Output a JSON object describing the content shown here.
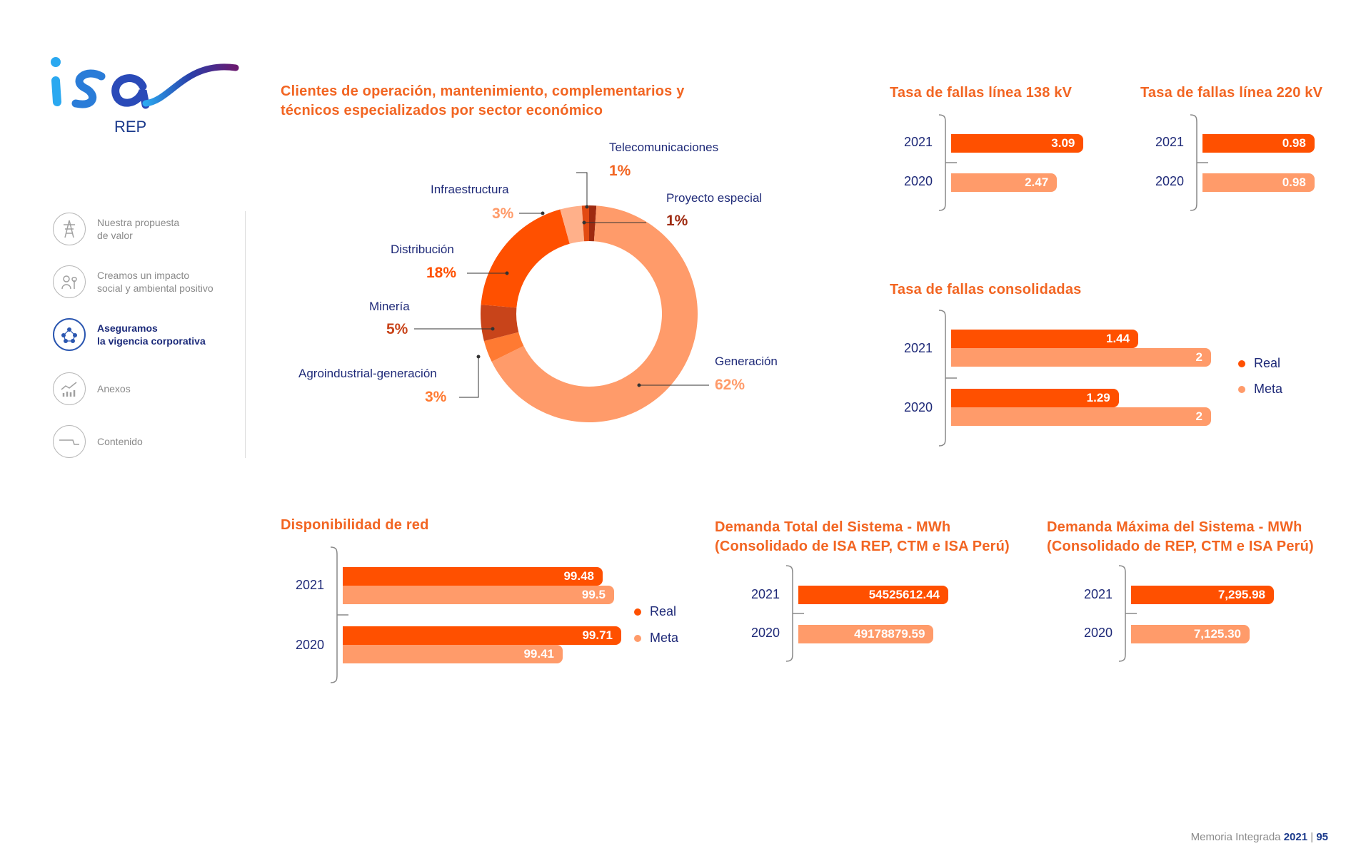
{
  "brand": {
    "logo_text": "isa",
    "sub": "REP"
  },
  "colors": {
    "real": "#ff5000",
    "meta": "#ff9b6a",
    "title": "#f26522",
    "text": "#1f2a78"
  },
  "sidebar": {
    "items": [
      {
        "label": "Nuestra propuesta\nde valor",
        "icon": "transmission-tower-icon",
        "active": false
      },
      {
        "label": "Creamos un impacto\nsocial y ambiental positivo",
        "icon": "people-plant-icon",
        "active": false
      },
      {
        "label": "Aseguramos\nla vigencia corporativa",
        "icon": "corporate-network-icon",
        "active": true
      },
      {
        "label": "Anexos",
        "icon": "chart-trend-icon",
        "active": false
      },
      {
        "label": "Contenido",
        "icon": "contents-icon",
        "active": false
      }
    ]
  },
  "legend": {
    "real": "Real",
    "meta": "Meta"
  },
  "footer": {
    "text": "Memoria Integrada",
    "year": "2021",
    "sep": "|",
    "page": "95"
  },
  "chart_data": [
    {
      "type": "pie",
      "title": "Clientes de operación, mantenimiento, complementarios y técnicos especializados por sector económico",
      "title_lines": [
        "Clientes de operación, mantenimiento, complementarios y",
        "técnicos especializados por sector económico"
      ],
      "slices": [
        {
          "label": "Proyecto especial",
          "value": 1,
          "pct": "1%",
          "color": "#9e2a10"
        },
        {
          "label": "Generación",
          "value": 62,
          "pct": "62%",
          "color": "#ff9b6a"
        },
        {
          "label": "Agroindustrial-generación",
          "value": 3,
          "pct": "3%",
          "color": "#ff7a32"
        },
        {
          "label": "Minería",
          "value": 5,
          "pct": "5%",
          "color": "#c8441a"
        },
        {
          "label": "Distribución",
          "value": 18,
          "pct": "18%",
          "color": "#ff5000"
        },
        {
          "label": "Infraestructura",
          "value": 3,
          "pct": "3%",
          "color": "#ffb08a"
        },
        {
          "label": "Telecomunicaciones",
          "value": 1,
          "pct": "1%",
          "color": "#e24a12"
        }
      ]
    },
    {
      "type": "bar",
      "title": "Tasa de fallas línea 138 kV",
      "categories": [
        "2021",
        "2020"
      ],
      "values": [
        3.09,
        2.47
      ],
      "labels": [
        "3.09",
        "2.47"
      ]
    },
    {
      "type": "bar",
      "title": "Tasa de fallas línea 220 kV",
      "categories": [
        "2021",
        "2020"
      ],
      "values": [
        0.98,
        0.98
      ],
      "labels": [
        "0.98",
        "0.98"
      ]
    },
    {
      "type": "bar",
      "title": "Tasa de fallas consolidadas",
      "categories": [
        "2021",
        "2020"
      ],
      "series": [
        {
          "name": "Real",
          "values": [
            1.44,
            1.29
          ],
          "labels": [
            "1.44",
            "1.29"
          ]
        },
        {
          "name": "Meta",
          "values": [
            2,
            2
          ],
          "labels": [
            "2",
            "2"
          ]
        }
      ]
    },
    {
      "type": "bar",
      "title": "Disponibilidad de red",
      "categories": [
        "2021",
        "2020"
      ],
      "series": [
        {
          "name": "Real",
          "values": [
            99.48,
            99.71
          ],
          "labels": [
            "99.48",
            "99.71"
          ]
        },
        {
          "name": "Meta",
          "values": [
            99.5,
            99.41
          ],
          "labels": [
            "99.5",
            "99.41"
          ]
        }
      ]
    },
    {
      "type": "bar",
      "title": "Demanda Total del Sistema - MWh (Consolidado de ISA REP, CTM e ISA Perú)",
      "title_lines": [
        "Demanda Total del Sistema - MWh",
        "(Consolidado de ISA REP, CTM e ISA Perú)"
      ],
      "categories": [
        "2021",
        "2020"
      ],
      "values": [
        54525612.44,
        49178879.59
      ],
      "labels": [
        "54525612.44",
        "49178879.59"
      ]
    },
    {
      "type": "bar",
      "title": "Demanda Máxima del Sistema - MWh (Consolidado de REP, CTM e ISA Perú)",
      "title_lines": [
        "Demanda Máxima del Sistema - MWh",
        "(Consolidado de REP, CTM e ISA Perú)"
      ],
      "categories": [
        "2021",
        "2020"
      ],
      "values": [
        7295.98,
        7125.3
      ],
      "labels": [
        "7,295.98",
        "7,125.30"
      ]
    }
  ]
}
